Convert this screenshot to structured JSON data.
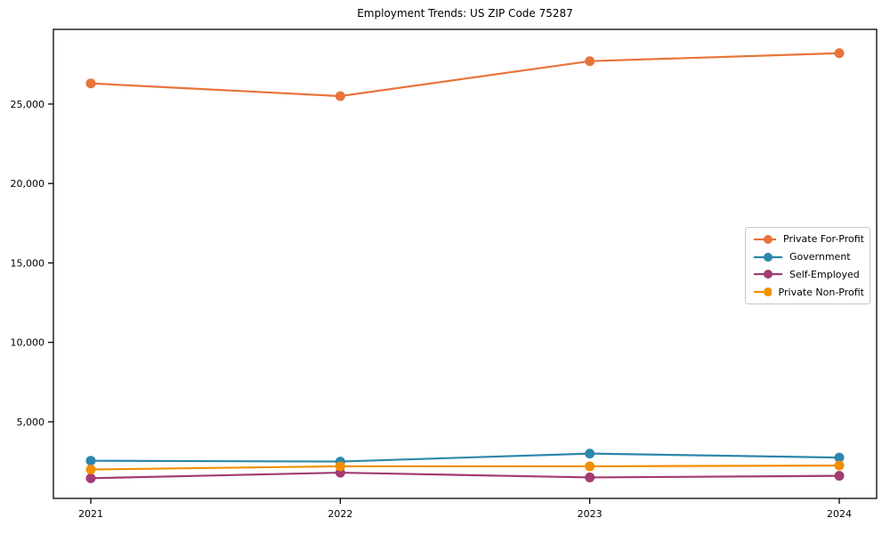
{
  "chart_data": {
    "type": "line",
    "title": "Employment Trends: US ZIP Code 75287",
    "xlabel": "",
    "ylabel": "",
    "categories": [
      "2021",
      "2022",
      "2023",
      "2024"
    ],
    "series": [
      {
        "name": "Private For-Profit",
        "color": "#E8743B",
        "values": [
          26300,
          25500,
          27700,
          28200
        ]
      },
      {
        "name": "Government",
        "color": "#2E86AB",
        "values": [
          2550,
          2500,
          3000,
          2750
        ]
      },
      {
        "name": "Self-Employed",
        "color": "#A23B72",
        "values": [
          1450,
          1800,
          1500,
          1600
        ]
      },
      {
        "name": "Private Non-Profit",
        "color": "#F18F01",
        "values": [
          2000,
          2200,
          2200,
          2250
        ]
      }
    ],
    "yticks": [
      {
        "value": 5000,
        "label": "5,000"
      },
      {
        "value": 10000,
        "label": "10,000"
      },
      {
        "value": 15000,
        "label": "15,000"
      },
      {
        "value": 20000,
        "label": "20,000"
      },
      {
        "value": 25000,
        "label": "25,000"
      }
    ],
    "ylim": [
      180,
      29700
    ],
    "grid": false,
    "legend_position": "center-right",
    "colors": {
      "background": "#ffffff",
      "axis": "#000000",
      "legend_border": "#c8c8c8"
    }
  }
}
